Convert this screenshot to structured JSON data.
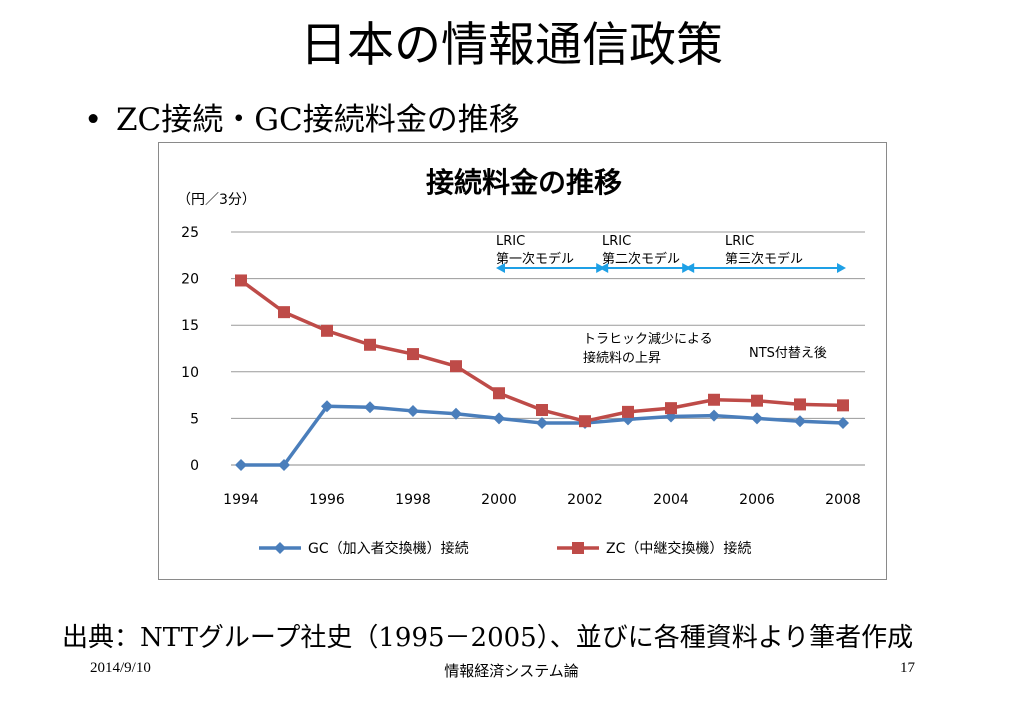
{
  "slide": {
    "title": "日本の情報通信政策",
    "bullet_marker": "•",
    "bullet": "ZC接続・GC接続料金の推移",
    "source": "出典：NTTグループ社史（1995－2005）、並びに各種資料より筆者作成"
  },
  "footer": {
    "date": "2014/9/10",
    "center": "情報経済システム論",
    "page": "17"
  },
  "chart_data": {
    "type": "line",
    "title": "接続料金の推移",
    "ylabel": "（円／3分）",
    "xlabel": "",
    "x": [
      1994,
      1995,
      1996,
      1997,
      1998,
      1999,
      2000,
      2001,
      2002,
      2003,
      2004,
      2005,
      2006,
      2007,
      2008
    ],
    "xticks": [
      "1994",
      "1996",
      "1998",
      "2000",
      "2002",
      "2004",
      "2006",
      "2008"
    ],
    "yticks": [
      "0",
      "5",
      "10",
      "15",
      "20",
      "25"
    ],
    "ylim": [
      0,
      25
    ],
    "xlim": [
      1994,
      2008
    ],
    "grid": true,
    "legend_position": "bottom",
    "series": [
      {
        "name": "GC（加入者交換機）接続",
        "color": "#4a7ebb",
        "marker": "diamond",
        "values": [
          0,
          0,
          6.3,
          6.2,
          5.8,
          5.5,
          5.0,
          4.5,
          4.5,
          4.9,
          5.2,
          5.3,
          5.0,
          4.7,
          4.5
        ]
      },
      {
        "name": "ZC（中継交換機）接続",
        "color": "#be4b48",
        "marker": "square",
        "values": [
          19.8,
          16.4,
          14.4,
          12.9,
          11.9,
          10.6,
          7.7,
          5.9,
          4.7,
          5.7,
          6.1,
          7.0,
          6.9,
          6.5,
          6.4
        ]
      }
    ],
    "annotations": {
      "lric1": {
        "line1": "LRIC",
        "line2": "第一次モデル",
        "from": 2000,
        "to": 2002.4
      },
      "lric2": {
        "line1": "LRIC",
        "line2": "第二次モデル",
        "from": 2002.4,
        "to": 2004.4
      },
      "lric3": {
        "line1": "LRIC",
        "line2": "第三次モデル",
        "from": 2004.4,
        "to": 2008
      },
      "traffic": {
        "line1": "トラヒック減少による",
        "line2": "接続料の上昇"
      },
      "nts": {
        "line1": "NTS付替え後"
      }
    },
    "arrow_color": "#1ea0e6"
  }
}
